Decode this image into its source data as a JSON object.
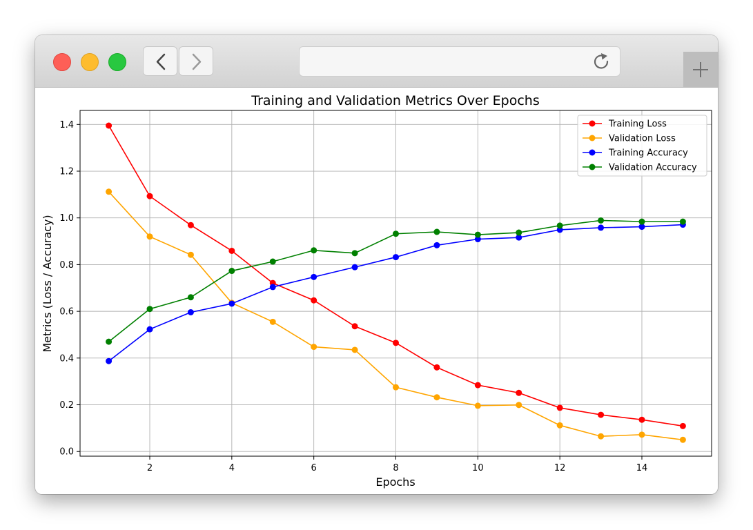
{
  "chart_data": {
    "type": "line",
    "title": "Training and Validation Metrics Over Epochs",
    "xlabel": "Epochs",
    "ylabel": "Metrics (Loss / Accuracy)",
    "xlim": [
      0.3,
      15.7
    ],
    "ylim": [
      -0.02,
      1.46
    ],
    "xticks": [
      2,
      4,
      6,
      8,
      10,
      12,
      14
    ],
    "xtick_labels": [
      "2",
      "4",
      "6",
      "8",
      "10",
      "12",
      "14"
    ],
    "yticks": [
      0.0,
      0.2,
      0.4,
      0.6,
      0.8,
      1.0,
      1.2,
      1.4
    ],
    "ytick_labels": [
      "0.0",
      "0.2",
      "0.4",
      "0.6",
      "0.8",
      "1.0",
      "1.2",
      "1.4"
    ],
    "grid": true,
    "legend_position": "top-right",
    "x": [
      1,
      2,
      3,
      4,
      5,
      6,
      7,
      8,
      9,
      10,
      11,
      12,
      13,
      14,
      15
    ],
    "series": [
      {
        "name": "Training Loss",
        "color": "#ff0000",
        "values": [
          1.395,
          1.093,
          0.969,
          0.859,
          0.721,
          0.647,
          0.536,
          0.465,
          0.36,
          0.284,
          0.251,
          0.187,
          0.157,
          0.136,
          0.109
        ]
      },
      {
        "name": "Validation Loss",
        "color": "#ffa500",
        "values": [
          1.112,
          0.92,
          0.842,
          0.636,
          0.555,
          0.448,
          0.435,
          0.275,
          0.232,
          0.196,
          0.199,
          0.112,
          0.065,
          0.072,
          0.05
        ]
      },
      {
        "name": "Training Accuracy",
        "color": "#0000ff",
        "values": [
          0.387,
          0.523,
          0.596,
          0.633,
          0.704,
          0.747,
          0.789,
          0.832,
          0.883,
          0.909,
          0.916,
          0.949,
          0.958,
          0.962,
          0.971
        ]
      },
      {
        "name": "Validation Accuracy",
        "color": "#008000",
        "values": [
          0.47,
          0.61,
          0.66,
          0.773,
          0.813,
          0.861,
          0.849,
          0.932,
          0.94,
          0.928,
          0.937,
          0.967,
          0.989,
          0.984,
          0.984
        ]
      }
    ]
  }
}
